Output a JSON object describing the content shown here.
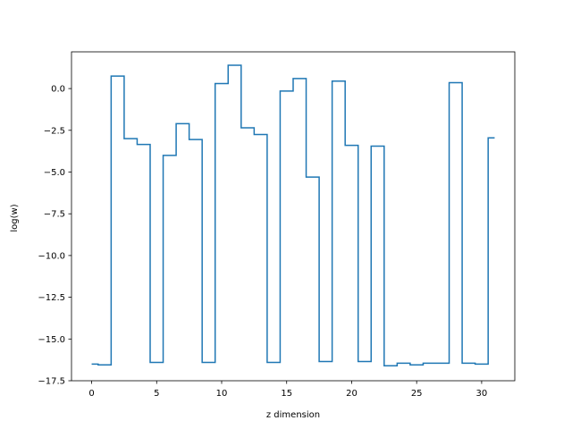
{
  "chart_data": {
    "type": "line",
    "drawstyle": "steps-mid",
    "title": "",
    "xlabel": "z dimension",
    "ylabel": "log(w)",
    "xlim": [
      -1.55,
      32.55
    ],
    "ylim": [
      -17.5,
      2.2
    ],
    "grid": false,
    "line_color": "#1f77b4",
    "x_ticks": [
      0,
      5,
      10,
      15,
      20,
      25,
      30
    ],
    "y_ticks": [
      0.0,
      -2.5,
      -5.0,
      -7.5,
      -10.0,
      -12.5,
      -15.0,
      -17.5
    ],
    "x_tick_labels": [
      "0",
      "5",
      "10",
      "15",
      "20",
      "25",
      "30"
    ],
    "y_tick_labels": [
      "0.0",
      "−2.5",
      "−5.0",
      "−7.5",
      "−10.0",
      "−12.5",
      "−15.0",
      "−17.5"
    ],
    "x": [
      0,
      1,
      2,
      3,
      4,
      5,
      6,
      7,
      8,
      9,
      10,
      11,
      12,
      13,
      14,
      15,
      16,
      17,
      18,
      19,
      20,
      21,
      22,
      23,
      24,
      25,
      26,
      27,
      28,
      29,
      30,
      31
    ],
    "values": [
      -16.5,
      -16.55,
      0.75,
      -3.0,
      -3.35,
      -16.4,
      -4.0,
      -2.1,
      -3.05,
      -16.4,
      0.3,
      1.4,
      -2.35,
      -2.75,
      -16.4,
      -0.15,
      0.6,
      -5.3,
      -16.35,
      0.45,
      -3.4,
      -16.35,
      -3.45,
      -16.6,
      -16.45,
      -16.55,
      -16.45,
      -16.45,
      0.35,
      -16.45,
      -16.5,
      -2.95
    ]
  }
}
